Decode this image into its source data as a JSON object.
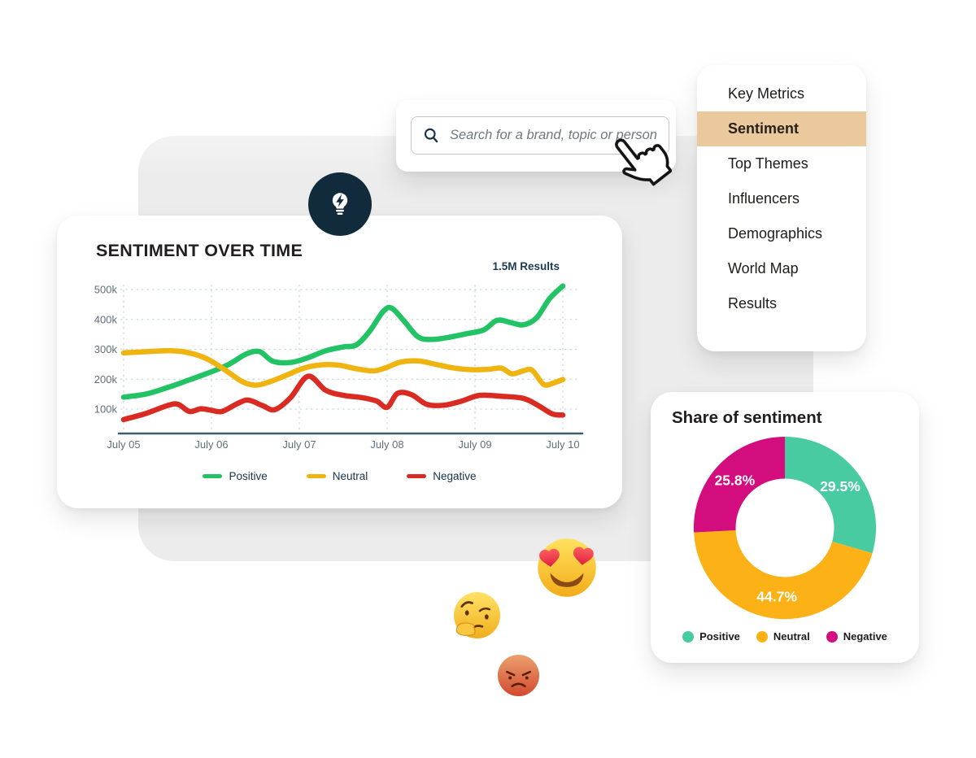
{
  "search": {
    "placeholder": "Search for a brand, topic or person",
    "icon": "search-icon",
    "cursor_icon": "hand-pointer-icon"
  },
  "menu": {
    "active_item": "Sentiment",
    "active_bg": "#eac99c",
    "items": [
      {
        "label": "Key Metrics",
        "active": false
      },
      {
        "label": "Sentiment",
        "active": true
      },
      {
        "label": "Top Themes",
        "active": false
      },
      {
        "label": "Influencers",
        "active": false
      },
      {
        "label": "Demographics",
        "active": false
      },
      {
        "label": "World Map",
        "active": false
      },
      {
        "label": "Results",
        "active": false
      }
    ]
  },
  "insight_badge": {
    "icon": "lightbulb-bolt-icon",
    "bg": "#112b3d"
  },
  "emojis": [
    {
      "name": "heart-eyes-emoji"
    },
    {
      "name": "thinking-emoji"
    },
    {
      "name": "angry-emoji"
    }
  ],
  "colors": {
    "panel_gray": "#ececec",
    "navy": "#112b3d",
    "highlight_tan": "#eac99c",
    "axis_text": "#5f7079",
    "baseline": "#3e5d6a",
    "gridline": "#cdd9e0"
  },
  "chart_data": [
    {
      "type": "line",
      "title": "SENTIMENT OVER TIME",
      "annotation": "1.5M Results",
      "x_ticks": [
        "July 05",
        "July 06",
        "July 07",
        "July 08",
        "July 09",
        "July 10"
      ],
      "y_ticks": [
        "500k",
        "400k",
        "300k",
        "200k",
        "100k"
      ],
      "y_unit": "thousands",
      "ylim": [
        0,
        550
      ],
      "grid": "dashed",
      "legend_position": "bottom",
      "series": [
        {
          "name": "Positive",
          "color": "#22c364",
          "x": [
            0,
            0.25,
            0.5,
            0.75,
            1.0,
            1.2,
            1.4,
            1.55,
            1.7,
            1.9,
            2.1,
            2.3,
            2.5,
            2.65,
            2.8,
            2.95,
            3.05,
            3.2,
            3.35,
            3.5,
            3.7,
            3.9,
            4.1,
            4.25,
            4.4,
            4.55,
            4.7,
            4.85,
            5.0
          ],
          "values": [
            140,
            150,
            172,
            198,
            225,
            250,
            285,
            292,
            260,
            256,
            272,
            295,
            308,
            315,
            360,
            425,
            438,
            392,
            342,
            333,
            340,
            352,
            365,
            397,
            390,
            382,
            405,
            470,
            512
          ]
        },
        {
          "name": "Neutral",
          "color": "#f0b411",
          "x": [
            0,
            0.3,
            0.55,
            0.75,
            0.95,
            1.15,
            1.35,
            1.5,
            1.65,
            1.85,
            2.05,
            2.25,
            2.45,
            2.65,
            2.85,
            3.0,
            3.15,
            3.35,
            3.55,
            3.75,
            3.95,
            4.15,
            4.3,
            4.42,
            4.55,
            4.65,
            4.78,
            4.88,
            5.0
          ],
          "values": [
            288,
            293,
            295,
            288,
            268,
            232,
            192,
            180,
            190,
            213,
            237,
            248,
            247,
            235,
            228,
            240,
            257,
            261,
            250,
            238,
            232,
            233,
            237,
            218,
            228,
            230,
            183,
            186,
            199
          ]
        },
        {
          "name": "Negative",
          "color": "#d92b21",
          "x": [
            0,
            0.25,
            0.5,
            0.62,
            0.75,
            0.88,
            1.0,
            1.12,
            1.3,
            1.42,
            1.58,
            1.72,
            1.9,
            2.1,
            2.3,
            2.5,
            2.7,
            2.88,
            3.0,
            3.12,
            3.28,
            3.45,
            3.65,
            3.85,
            4.05,
            4.3,
            4.55,
            4.72,
            4.88,
            5.0
          ],
          "values": [
            65,
            85,
            112,
            116,
            92,
            101,
            96,
            92,
            119,
            130,
            112,
            98,
            138,
            210,
            163,
            146,
            139,
            127,
            106,
            153,
            148,
            116,
            113,
            127,
            146,
            143,
            136,
            112,
            84,
            80
          ]
        }
      ]
    },
    {
      "type": "donut",
      "title": "Share of sentiment",
      "start_angle_deg": 0,
      "direction": "clockwise",
      "labels_format": "percent",
      "legend_position": "bottom",
      "slices": [
        {
          "label": "Positive",
          "value": 29.5,
          "display": "29.5%",
          "color": "#49cba1"
        },
        {
          "label": "Neutral",
          "value": 44.7,
          "display": "44.7%",
          "color": "#fcb216"
        },
        {
          "label": "Negative",
          "value": 25.8,
          "display": "25.8%",
          "color": "#d40d7e"
        }
      ]
    }
  ]
}
